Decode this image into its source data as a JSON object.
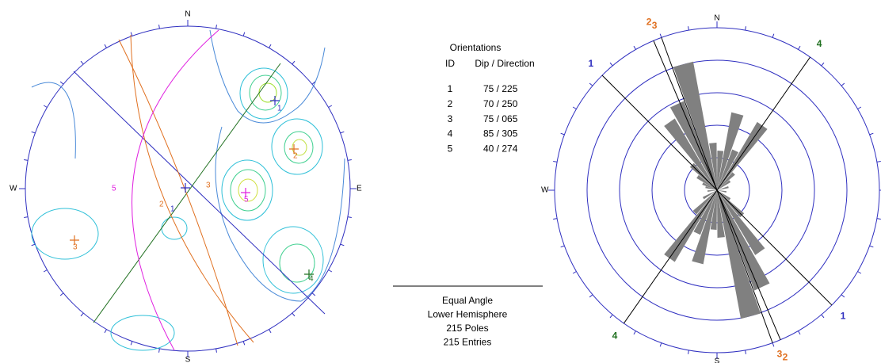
{
  "stereonet": {
    "north": "N",
    "south": "S",
    "east": "E",
    "west": "W",
    "poles": [
      {
        "label": "1"
      },
      {
        "label": "2"
      },
      {
        "label": "3"
      },
      {
        "label": "4"
      },
      {
        "label": "5"
      }
    ],
    "planes": [
      {
        "label": "1"
      },
      {
        "label": "2"
      },
      {
        "label": "3"
      },
      {
        "label": "5"
      }
    ]
  },
  "table": {
    "title": "Orientations",
    "headers": [
      "ID",
      "Dip / Direction"
    ],
    "rows": [
      [
        "1",
        "75 / 225"
      ],
      [
        "2",
        "70 / 250"
      ],
      [
        "3",
        "75 / 065"
      ],
      [
        "4",
        "85 / 305"
      ],
      [
        "5",
        "40 / 274"
      ]
    ]
  },
  "summary": [
    "Equal Angle",
    "Lower Hemisphere",
    "215 Poles",
    "215 Entries"
  ],
  "rose": {
    "north": "N",
    "south": "S",
    "west": "W",
    "set_labels": [
      {
        "label": "1"
      },
      {
        "label": "2"
      },
      {
        "label": "3"
      },
      {
        "label": "4"
      }
    ]
  }
}
